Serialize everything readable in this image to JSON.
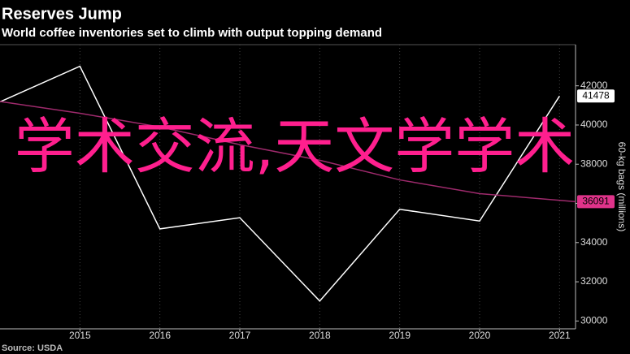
{
  "chart_data": {
    "type": "line",
    "title": "Reserves Jump",
    "subtitle": "World coffee inventories set to climb with output topping demand",
    "y_axis_label": "60-kg bags (millions)",
    "source": "Source: USDA",
    "overlay_text": "学术交流,天文学学术",
    "series": [
      {
        "color": "#ffffff",
        "x": [
          2014,
          2015,
          2016,
          2017,
          2018,
          2019,
          2020,
          2021
        ],
        "values": [
          41180,
          43000,
          34700,
          35270,
          31020,
          35700,
          35100,
          41478
        ],
        "label_bg": "#ffffff",
        "label_fg": "#000000"
      },
      {
        "color": "#9e2a6c",
        "x": [
          2014,
          2015,
          2016,
          2017,
          2018,
          2019,
          2020,
          2021.2
        ],
        "values": [
          41200,
          40600,
          39900,
          39000,
          38200,
          37200,
          36500,
          36091
        ],
        "label_bg": "#e0338a",
        "label_fg": "#000000"
      }
    ],
    "xlim": [
      2014,
      2021.2
    ],
    "xticks": [
      2015,
      2016,
      2017,
      2018,
      2019,
      2020,
      2021
    ],
    "ylim": [
      29600,
      44100
    ],
    "yticks": [
      30000,
      32000,
      34000,
      36000,
      38000,
      40000,
      42000
    ],
    "grid": "x"
  }
}
